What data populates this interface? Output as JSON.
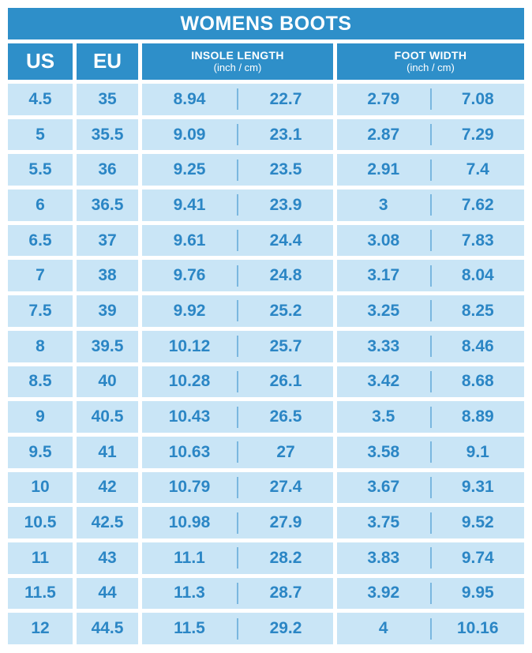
{
  "title": "WOMENS BOOTS",
  "colors": {
    "header_blue": "#2E8FC9",
    "cell_blue": "#C9E5F6",
    "text_blue": "#2B86C5",
    "divider_blue": "#7AB7DF",
    "background": "#FFFFFF"
  },
  "chart_data": {
    "type": "table",
    "title": "WOMENS BOOTS",
    "column_groups": [
      {
        "key": "us",
        "label": "US"
      },
      {
        "key": "eu",
        "label": "EU"
      },
      {
        "key": "insole",
        "label": "INSOLE LENGTH",
        "sublabel": "(inch / cm)"
      },
      {
        "key": "foot",
        "label": "FOOT WIDTH",
        "sublabel": "(inch / cm)"
      }
    ],
    "rows": [
      {
        "us": "4.5",
        "eu": "35",
        "insole_inch": "8.94",
        "insole_cm": "22.7",
        "foot_inch": "2.79",
        "foot_cm": "7.08"
      },
      {
        "us": "5",
        "eu": "35.5",
        "insole_inch": "9.09",
        "insole_cm": "23.1",
        "foot_inch": "2.87",
        "foot_cm": "7.29"
      },
      {
        "us": "5.5",
        "eu": "36",
        "insole_inch": "9.25",
        "insole_cm": "23.5",
        "foot_inch": "2.91",
        "foot_cm": "7.4"
      },
      {
        "us": "6",
        "eu": "36.5",
        "insole_inch": "9.41",
        "insole_cm": "23.9",
        "foot_inch": "3",
        "foot_cm": "7.62"
      },
      {
        "us": "6.5",
        "eu": "37",
        "insole_inch": "9.61",
        "insole_cm": "24.4",
        "foot_inch": "3.08",
        "foot_cm": "7.83"
      },
      {
        "us": "7",
        "eu": "38",
        "insole_inch": "9.76",
        "insole_cm": "24.8",
        "foot_inch": "3.17",
        "foot_cm": "8.04"
      },
      {
        "us": "7.5",
        "eu": "39",
        "insole_inch": "9.92",
        "insole_cm": "25.2",
        "foot_inch": "3.25",
        "foot_cm": "8.25"
      },
      {
        "us": "8",
        "eu": "39.5",
        "insole_inch": "10.12",
        "insole_cm": "25.7",
        "foot_inch": "3.33",
        "foot_cm": "8.46"
      },
      {
        "us": "8.5",
        "eu": "40",
        "insole_inch": "10.28",
        "insole_cm": "26.1",
        "foot_inch": "3.42",
        "foot_cm": "8.68"
      },
      {
        "us": "9",
        "eu": "40.5",
        "insole_inch": "10.43",
        "insole_cm": "26.5",
        "foot_inch": "3.5",
        "foot_cm": "8.89"
      },
      {
        "us": "9.5",
        "eu": "41",
        "insole_inch": "10.63",
        "insole_cm": "27",
        "foot_inch": "3.58",
        "foot_cm": "9.1"
      },
      {
        "us": "10",
        "eu": "42",
        "insole_inch": "10.79",
        "insole_cm": "27.4",
        "foot_inch": "3.67",
        "foot_cm": "9.31"
      },
      {
        "us": "10.5",
        "eu": "42.5",
        "insole_inch": "10.98",
        "insole_cm": "27.9",
        "foot_inch": "3.75",
        "foot_cm": "9.52"
      },
      {
        "us": "11",
        "eu": "43",
        "insole_inch": "11.1",
        "insole_cm": "28.2",
        "foot_inch": "3.83",
        "foot_cm": "9.74"
      },
      {
        "us": "11.5",
        "eu": "44",
        "insole_inch": "11.3",
        "insole_cm": "28.7",
        "foot_inch": "3.92",
        "foot_cm": "9.95"
      },
      {
        "us": "12",
        "eu": "44.5",
        "insole_inch": "11.5",
        "insole_cm": "29.2",
        "foot_inch": "4",
        "foot_cm": "10.16"
      }
    ]
  }
}
